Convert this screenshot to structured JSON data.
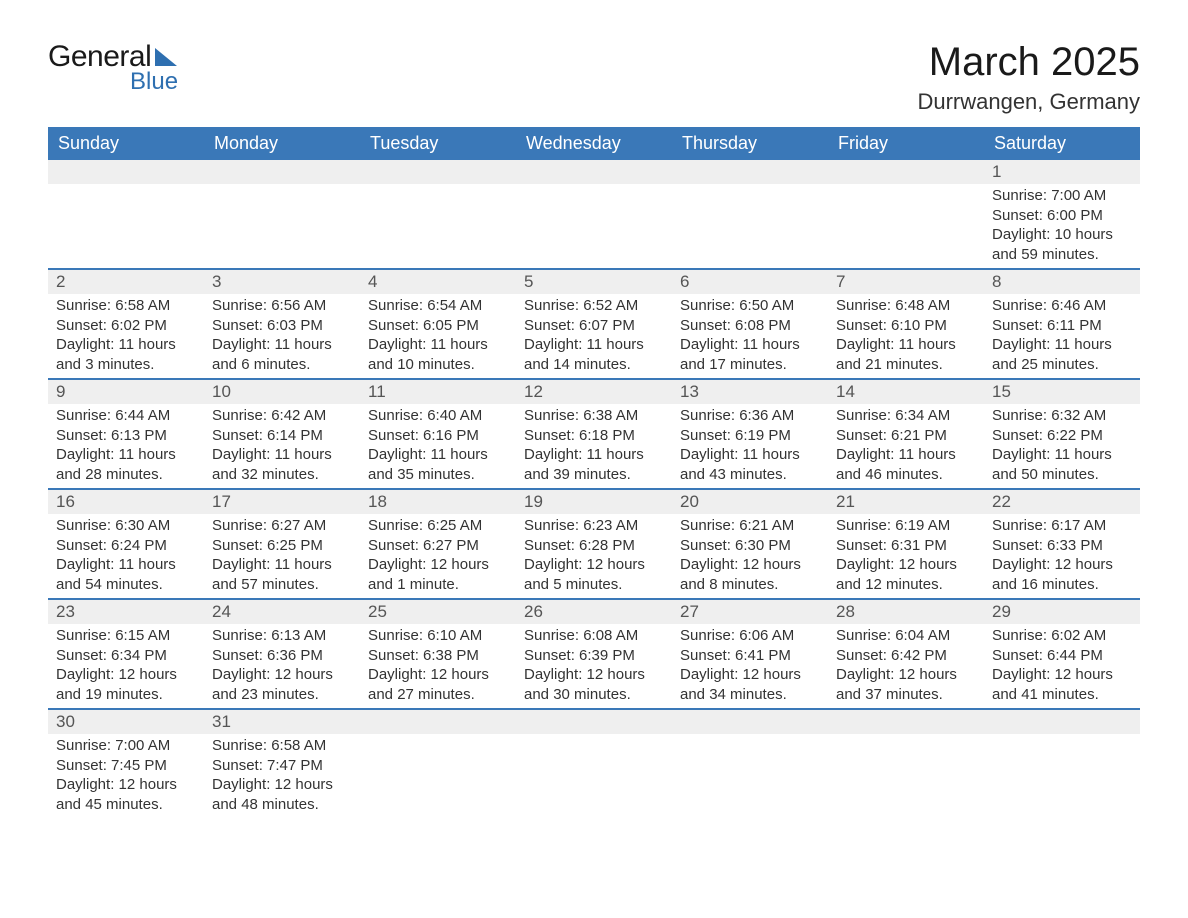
{
  "logo": {
    "text1": "General",
    "text2": "Blue"
  },
  "title": "March 2025",
  "subtitle": "Durrwangen, Germany",
  "colors": {
    "header_bg": "#3a78b8",
    "header_text": "#ffffff",
    "row_separator": "#3a78b8",
    "daynum_bg": "#efefef",
    "text": "#333333",
    "logo_accent": "#2e6fb0"
  },
  "typography": {
    "title_fontsize": 40,
    "subtitle_fontsize": 22,
    "header_fontsize": 18,
    "daynum_fontsize": 17,
    "body_fontsize": 15
  },
  "day_labels": [
    "Sunday",
    "Monday",
    "Tuesday",
    "Wednesday",
    "Thursday",
    "Friday",
    "Saturday"
  ],
  "field_labels": {
    "sunrise": "Sunrise:",
    "sunset": "Sunset:",
    "daylight": "Daylight:"
  },
  "weeks": [
    [
      null,
      null,
      null,
      null,
      null,
      null,
      {
        "n": "1",
        "sunrise": "7:00 AM",
        "sunset": "6:00 PM",
        "daylight": "10 hours and 59 minutes."
      }
    ],
    [
      {
        "n": "2",
        "sunrise": "6:58 AM",
        "sunset": "6:02 PM",
        "daylight": "11 hours and 3 minutes."
      },
      {
        "n": "3",
        "sunrise": "6:56 AM",
        "sunset": "6:03 PM",
        "daylight": "11 hours and 6 minutes."
      },
      {
        "n": "4",
        "sunrise": "6:54 AM",
        "sunset": "6:05 PM",
        "daylight": "11 hours and 10 minutes."
      },
      {
        "n": "5",
        "sunrise": "6:52 AM",
        "sunset": "6:07 PM",
        "daylight": "11 hours and 14 minutes."
      },
      {
        "n": "6",
        "sunrise": "6:50 AM",
        "sunset": "6:08 PM",
        "daylight": "11 hours and 17 minutes."
      },
      {
        "n": "7",
        "sunrise": "6:48 AM",
        "sunset": "6:10 PM",
        "daylight": "11 hours and 21 minutes."
      },
      {
        "n": "8",
        "sunrise": "6:46 AM",
        "sunset": "6:11 PM",
        "daylight": "11 hours and 25 minutes."
      }
    ],
    [
      {
        "n": "9",
        "sunrise": "6:44 AM",
        "sunset": "6:13 PM",
        "daylight": "11 hours and 28 minutes."
      },
      {
        "n": "10",
        "sunrise": "6:42 AM",
        "sunset": "6:14 PM",
        "daylight": "11 hours and 32 minutes."
      },
      {
        "n": "11",
        "sunrise": "6:40 AM",
        "sunset": "6:16 PM",
        "daylight": "11 hours and 35 minutes."
      },
      {
        "n": "12",
        "sunrise": "6:38 AM",
        "sunset": "6:18 PM",
        "daylight": "11 hours and 39 minutes."
      },
      {
        "n": "13",
        "sunrise": "6:36 AM",
        "sunset": "6:19 PM",
        "daylight": "11 hours and 43 minutes."
      },
      {
        "n": "14",
        "sunrise": "6:34 AM",
        "sunset": "6:21 PM",
        "daylight": "11 hours and 46 minutes."
      },
      {
        "n": "15",
        "sunrise": "6:32 AM",
        "sunset": "6:22 PM",
        "daylight": "11 hours and 50 minutes."
      }
    ],
    [
      {
        "n": "16",
        "sunrise": "6:30 AM",
        "sunset": "6:24 PM",
        "daylight": "11 hours and 54 minutes."
      },
      {
        "n": "17",
        "sunrise": "6:27 AM",
        "sunset": "6:25 PM",
        "daylight": "11 hours and 57 minutes."
      },
      {
        "n": "18",
        "sunrise": "6:25 AM",
        "sunset": "6:27 PM",
        "daylight": "12 hours and 1 minute."
      },
      {
        "n": "19",
        "sunrise": "6:23 AM",
        "sunset": "6:28 PM",
        "daylight": "12 hours and 5 minutes."
      },
      {
        "n": "20",
        "sunrise": "6:21 AM",
        "sunset": "6:30 PM",
        "daylight": "12 hours and 8 minutes."
      },
      {
        "n": "21",
        "sunrise": "6:19 AM",
        "sunset": "6:31 PM",
        "daylight": "12 hours and 12 minutes."
      },
      {
        "n": "22",
        "sunrise": "6:17 AM",
        "sunset": "6:33 PM",
        "daylight": "12 hours and 16 minutes."
      }
    ],
    [
      {
        "n": "23",
        "sunrise": "6:15 AM",
        "sunset": "6:34 PM",
        "daylight": "12 hours and 19 minutes."
      },
      {
        "n": "24",
        "sunrise": "6:13 AM",
        "sunset": "6:36 PM",
        "daylight": "12 hours and 23 minutes."
      },
      {
        "n": "25",
        "sunrise": "6:10 AM",
        "sunset": "6:38 PM",
        "daylight": "12 hours and 27 minutes."
      },
      {
        "n": "26",
        "sunrise": "6:08 AM",
        "sunset": "6:39 PM",
        "daylight": "12 hours and 30 minutes."
      },
      {
        "n": "27",
        "sunrise": "6:06 AM",
        "sunset": "6:41 PM",
        "daylight": "12 hours and 34 minutes."
      },
      {
        "n": "28",
        "sunrise": "6:04 AM",
        "sunset": "6:42 PM",
        "daylight": "12 hours and 37 minutes."
      },
      {
        "n": "29",
        "sunrise": "6:02 AM",
        "sunset": "6:44 PM",
        "daylight": "12 hours and 41 minutes."
      }
    ],
    [
      {
        "n": "30",
        "sunrise": "7:00 AM",
        "sunset": "7:45 PM",
        "daylight": "12 hours and 45 minutes."
      },
      {
        "n": "31",
        "sunrise": "6:58 AM",
        "sunset": "7:47 PM",
        "daylight": "12 hours and 48 minutes."
      },
      null,
      null,
      null,
      null,
      null
    ]
  ]
}
